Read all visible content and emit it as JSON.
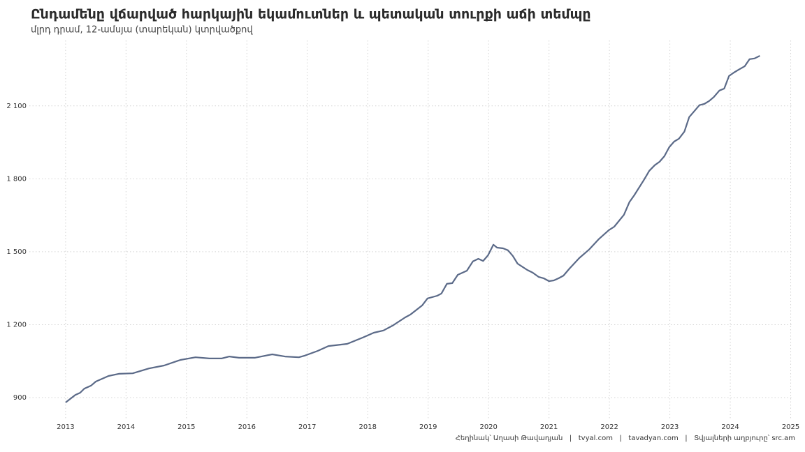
{
  "chart_data": {
    "type": "line",
    "title": "Ընդամենը վճարված հարկային եկամուտներ և պետական տուրքի աճի տեմպը",
    "subtitle": "մլրդ դրամ, 12-ամսյա (տարեկան) կտրվածքով",
    "caption": "Հեղինակ՝ Աղասի Թավադյան   |   tvyal.com   |   tavadyan.com   |   Տվյալների աղբյուրը՝ src.am",
    "x": [
      2013.0,
      2013.16,
      2013.24,
      2013.31,
      2013.42,
      2013.5,
      2013.71,
      2013.88,
      2014.11,
      2014.38,
      2014.63,
      2014.9,
      2015.15,
      2015.38,
      2015.58,
      2015.71,
      2015.87,
      2016.13,
      2016.42,
      2016.63,
      2016.86,
      2016.95,
      2017.17,
      2017.35,
      2017.66,
      2017.92,
      2018.1,
      2018.26,
      2018.41,
      2018.62,
      2018.71,
      2018.9,
      2018.99,
      2019.15,
      2019.22,
      2019.31,
      2019.4,
      2019.49,
      2019.64,
      2019.74,
      2019.83,
      2019.91,
      2019.99,
      2020.08,
      2020.14,
      2020.24,
      2020.32,
      2020.4,
      2020.48,
      2020.64,
      2020.73,
      2020.83,
      2020.91,
      2021.0,
      2021.08,
      2021.16,
      2021.24,
      2021.34,
      2021.5,
      2021.66,
      2021.82,
      2021.99,
      2022.08,
      2022.24,
      2022.33,
      2022.41,
      2022.57,
      2022.66,
      2022.75,
      2022.83,
      2022.91,
      2022.99,
      2023.07,
      2023.15,
      2023.24,
      2023.32,
      2023.4,
      2023.49,
      2023.57,
      2023.65,
      2023.73,
      2023.82,
      2023.9,
      2023.98,
      2024.06,
      2024.14,
      2024.24,
      2024.32,
      2024.4,
      2024.49
    ],
    "series": [
      {
        "name": "Հարկային եկամուտներ",
        "color": "#5b6a88",
        "values": [
          880,
          911,
          920,
          937,
          949,
          966,
          989,
          998,
          1000,
          1020,
          1032,
          1055,
          1066,
          1061,
          1061,
          1069,
          1064,
          1064,
          1078,
          1069,
          1066,
          1072,
          1092,
          1112,
          1121,
          1147,
          1167,
          1176,
          1196,
          1230,
          1242,
          1279,
          1308,
          1319,
          1328,
          1368,
          1371,
          1405,
          1422,
          1460,
          1471,
          1462,
          1485,
          1529,
          1517,
          1514,
          1506,
          1483,
          1451,
          1425,
          1414,
          1396,
          1391,
          1379,
          1382,
          1391,
          1402,
          1431,
          1474,
          1508,
          1551,
          1589,
          1603,
          1652,
          1704,
          1732,
          1795,
          1833,
          1856,
          1870,
          1893,
          1930,
          1953,
          1965,
          1994,
          2054,
          2077,
          2103,
          2108,
          2120,
          2137,
          2163,
          2171,
          2223,
          2237,
          2249,
          2263,
          2292,
          2295,
          2306
        ]
      }
    ],
    "xlim": [
      2012.4,
      2025.04
    ],
    "xticks": [
      2013,
      2014,
      2015,
      2016,
      2017,
      2018,
      2019,
      2020,
      2021,
      2022,
      2023,
      2024,
      2025
    ],
    "ylim": [
      814,
      2369
    ],
    "yticks": [
      900,
      {
        "value": 1200,
        "label": "1 200"
      },
      {
        "value": 1500,
        "label": "1 500"
      },
      {
        "value": 1800,
        "label": "1 800"
      },
      {
        "value": 2100,
        "label": "2 100"
      }
    ],
    "grid": true
  }
}
